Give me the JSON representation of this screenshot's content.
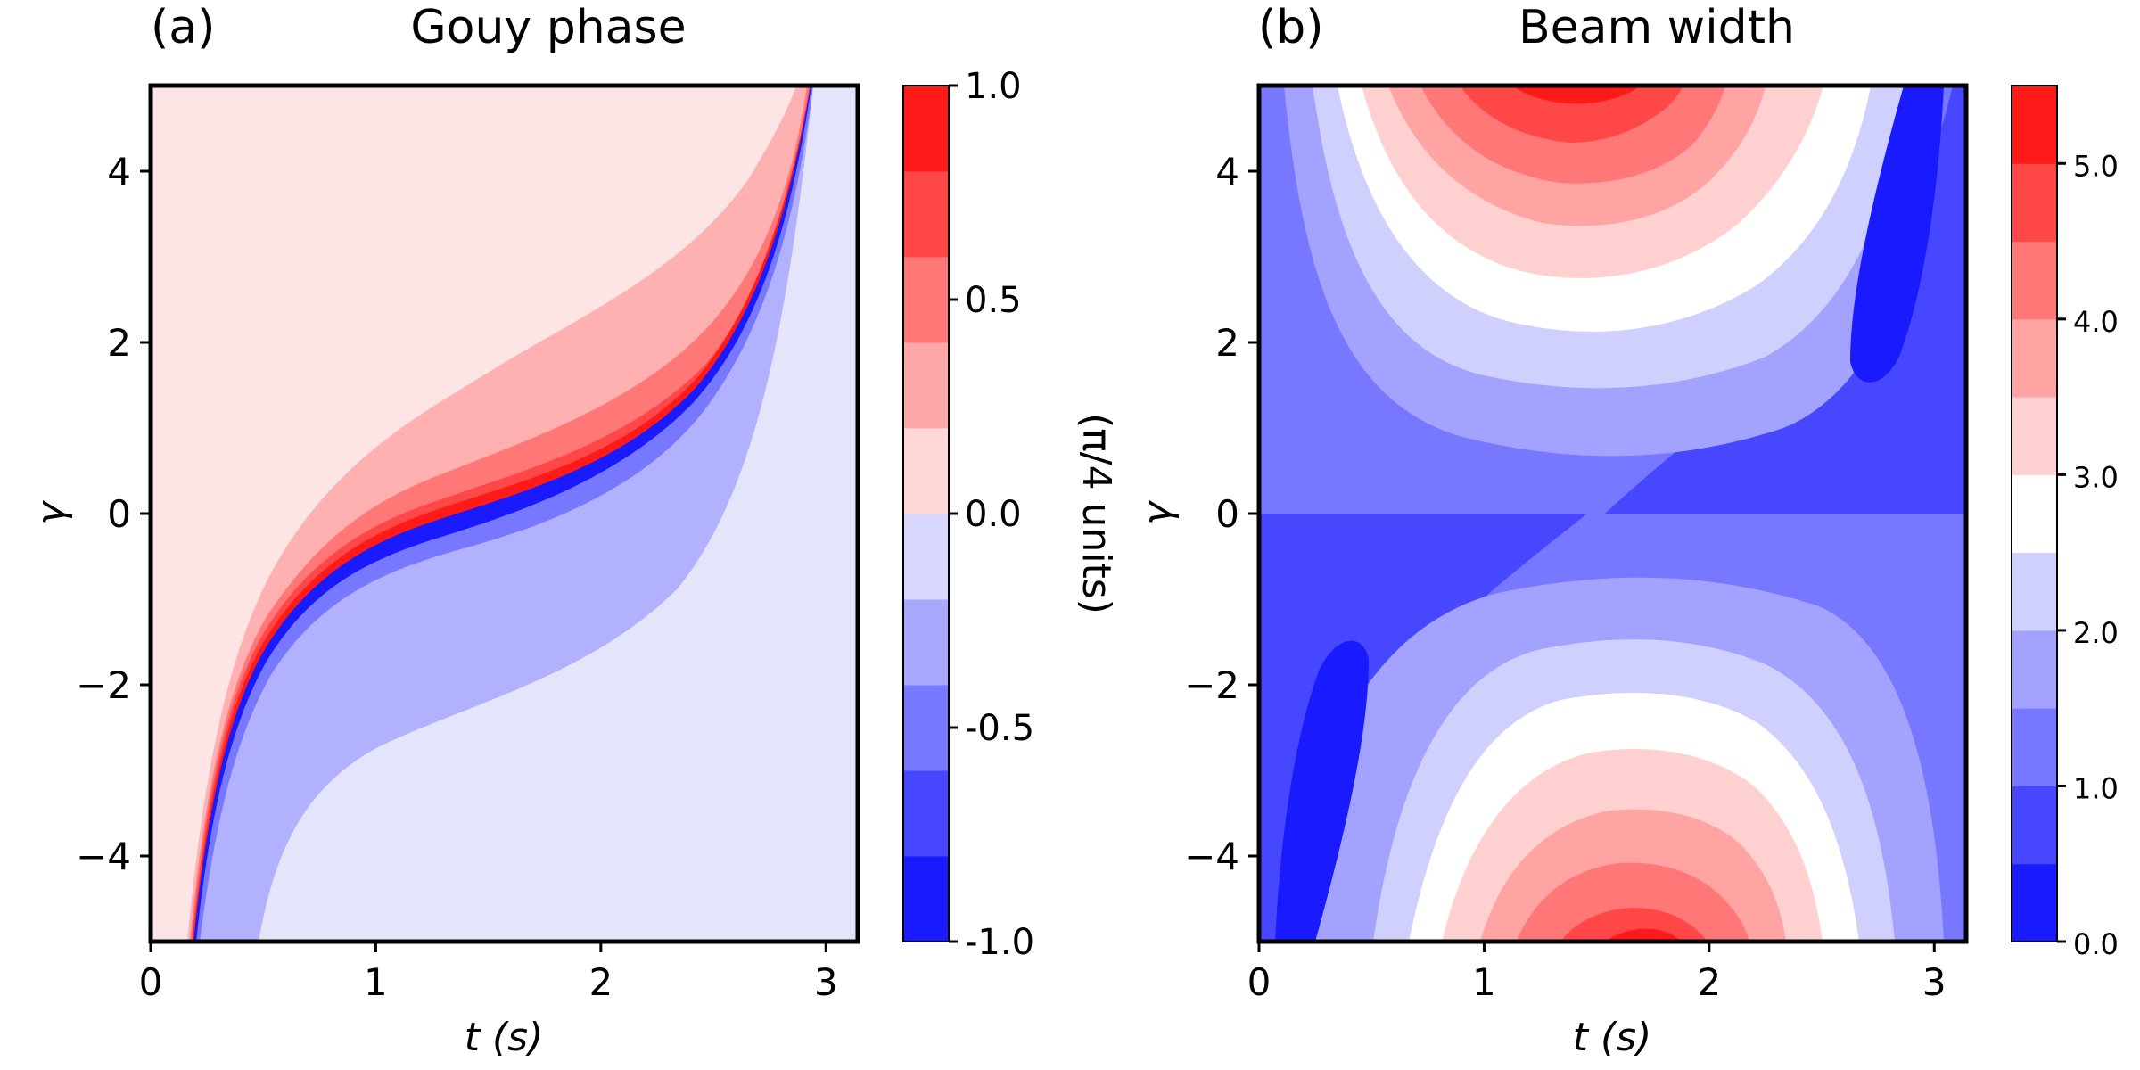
{
  "chart_data": [
    {
      "type": "heatmap",
      "panel_label": "(a)",
      "title": "Gouy phase",
      "xlabel": "t (s)",
      "ylabel": "γ",
      "xlim": [
        0,
        3.14159
      ],
      "ylim": [
        -5,
        5
      ],
      "xticks": [
        0,
        1,
        2,
        3
      ],
      "yticks": [
        -4,
        -2,
        0,
        2,
        4
      ],
      "xtick_labels": [
        "0",
        "1",
        "2",
        "3"
      ],
      "ytick_labels": [
        "−4",
        "−2",
        "0",
        "2",
        "4"
      ],
      "colorbar": {
        "label": "(π/4 units)",
        "range": [
          -1.0,
          1.0
        ],
        "levels": [
          -1.0,
          -0.8,
          -0.6,
          -0.4,
          -0.2,
          0.0,
          0.2,
          0.4,
          0.6,
          0.8,
          1.0
        ],
        "tick_values": [
          -1.0,
          -0.5,
          0.0,
          0.5,
          1.0
        ],
        "tick_labels": [
          "-1.0",
          "-0.5",
          "0.0",
          "0.5",
          "1.0"
        ],
        "colors": [
          "#1a1aff",
          "#4747ff",
          "#7777ff",
          "#a8a8ff",
          "#d7d7ff",
          "#ffd7d7",
          "#ffa8a8",
          "#ff7777",
          "#ff4747",
          "#ff1a1a"
        ],
        "fill_colors": [
          "#1a1aff",
          "#4747ff",
          "#7777ff",
          "#b1b1ff",
          "#e4e4fa",
          "#fde5e5",
          "#ffb1b1",
          "#ff7777",
          "#ff4747",
          "#ff1a1a"
        ]
      }
    },
    {
      "type": "heatmap",
      "panel_label": "(b)",
      "title": "Beam width",
      "xlabel": "t (s)",
      "ylabel": "γ",
      "xlim": [
        0,
        3.14159
      ],
      "ylim": [
        -5,
        5
      ],
      "xticks": [
        0,
        1,
        2,
        3
      ],
      "yticks": [
        -4,
        -2,
        0,
        2,
        4
      ],
      "xtick_labels": [
        "0",
        "1",
        "2",
        "3"
      ],
      "ytick_labels": [
        "−4",
        "−2",
        "0",
        "2",
        "4"
      ],
      "colorbar": {
        "label": "",
        "range": [
          0.0,
          5.5
        ],
        "levels": [
          0.0,
          0.5,
          1.0,
          1.5,
          2.0,
          2.5,
          3.0,
          3.5,
          4.0,
          4.5,
          5.0,
          5.5
        ],
        "tick_values": [
          0.0,
          1.0,
          2.0,
          3.0,
          4.0,
          5.0
        ],
        "tick_labels": [
          "0.0",
          "1.0",
          "2.0",
          "3.0",
          "4.0",
          "5.0"
        ],
        "colors": [
          "#1a1aff",
          "#4747ff",
          "#7777ff",
          "#a3a3ff",
          "#d0d0ff",
          "#ffffff",
          "#ffd0d0",
          "#ffa3a3",
          "#ff7777",
          "#ff4747",
          "#ff1a1a"
        ]
      }
    }
  ]
}
